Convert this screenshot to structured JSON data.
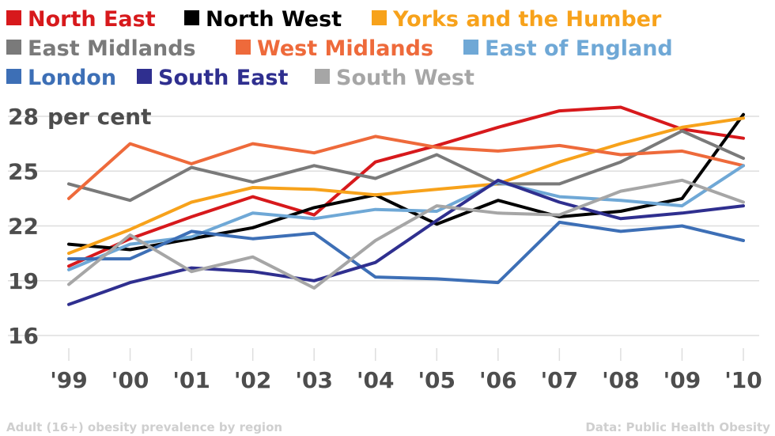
{
  "chart_data": {
    "type": "line",
    "ylabel": "per cent",
    "ylim": [
      16,
      28
    ],
    "yticks": [
      16,
      19,
      22,
      25,
      28
    ],
    "categories": [
      "'99",
      "'00",
      "'01",
      "'02",
      "'03",
      "'04",
      "'05",
      "'06",
      "'07",
      "'08",
      "'09",
      "'10"
    ],
    "grid": true,
    "legend_position": "top",
    "series": [
      {
        "name": "North East",
        "color": "#d7191c",
        "values": [
          19.8,
          21.3,
          22.5,
          23.6,
          22.6,
          25.5,
          26.4,
          27.4,
          28.3,
          28.5,
          27.3,
          26.8
        ]
      },
      {
        "name": "North West",
        "color": "#000000",
        "values": [
          21.0,
          20.7,
          21.3,
          21.9,
          23.0,
          23.7,
          22.1,
          23.4,
          22.5,
          22.8,
          23.5,
          28.1
        ]
      },
      {
        "name": "Yorks and the Humber",
        "color": "#f7a21b",
        "values": [
          20.5,
          21.8,
          23.3,
          24.1,
          24.0,
          23.7,
          24.0,
          24.3,
          25.5,
          26.5,
          27.4,
          27.9
        ]
      },
      {
        "name": "East Midlands",
        "color": "#7a7a7a",
        "values": [
          24.3,
          23.4,
          25.2,
          24.4,
          25.3,
          24.6,
          25.9,
          24.3,
          24.3,
          25.5,
          27.2,
          25.7
        ]
      },
      {
        "name": "West Midlands",
        "color": "#ee6a3b",
        "values": [
          23.5,
          26.5,
          25.4,
          26.5,
          26.0,
          26.9,
          26.3,
          26.1,
          26.4,
          25.9,
          26.1,
          25.3
        ]
      },
      {
        "name": "East of England",
        "color": "#6fa8d6",
        "values": [
          19.6,
          21.0,
          21.4,
          22.7,
          22.4,
          22.9,
          22.8,
          24.4,
          23.6,
          23.4,
          23.1,
          25.3
        ]
      },
      {
        "name": "London",
        "color": "#3d6fb6",
        "values": [
          20.2,
          20.2,
          21.7,
          21.3,
          21.6,
          19.2,
          19.1,
          18.9,
          22.2,
          21.7,
          22.0,
          21.2
        ]
      },
      {
        "name": "South East",
        "color": "#2f2f8f",
        "values": [
          17.7,
          18.9,
          19.7,
          19.5,
          19.0,
          20.0,
          22.3,
          24.5,
          23.3,
          22.4,
          22.7,
          23.1
        ]
      },
      {
        "name": "South West",
        "color": "#a6a6a6",
        "values": [
          18.8,
          21.5,
          19.5,
          20.3,
          18.6,
          21.2,
          23.1,
          22.7,
          22.6,
          23.9,
          24.5,
          23.3
        ]
      }
    ]
  },
  "footer": {
    "caption": "Adult (16+) obesity prevalence by region",
    "source": "Data: Public Health Obesity"
  }
}
